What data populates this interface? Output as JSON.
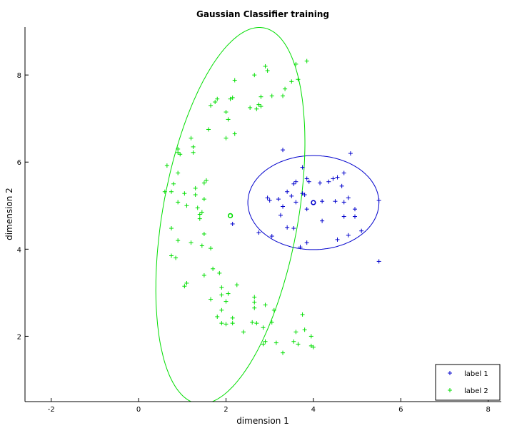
{
  "chart_data": {
    "type": "scatter",
    "title": "Gaussian Classifier training",
    "xlabel": "dimension 1",
    "ylabel": "dimension 2",
    "xlim": [
      -2.6,
      8.3
    ],
    "ylim": [
      0.5,
      9.1
    ],
    "xticks": [
      -2,
      0,
      2,
      4,
      6,
      8
    ],
    "yticks": [
      2,
      4,
      6,
      8
    ],
    "grid": false,
    "legend_position": "bottom-right",
    "series": [
      {
        "name": "label 1",
        "color": "#0000cc",
        "marker": "plus",
        "points": [
          [
            3.3,
            6.28
          ],
          [
            4.85,
            6.2
          ],
          [
            3.75,
            5.88
          ],
          [
            3.6,
            5.55
          ],
          [
            3.55,
            5.5
          ],
          [
            3.4,
            5.32
          ],
          [
            3.5,
            5.22
          ],
          [
            3.85,
            5.62
          ],
          [
            3.9,
            5.55
          ],
          [
            3.75,
            5.28
          ],
          [
            3.8,
            5.25
          ],
          [
            4.15,
            5.52
          ],
          [
            4.45,
            5.62
          ],
          [
            4.55,
            5.65
          ],
          [
            4.7,
            5.75
          ],
          [
            4.35,
            5.55
          ],
          [
            4.65,
            5.45
          ],
          [
            4.5,
            5.1
          ],
          [
            4.7,
            5.08
          ],
          [
            4.8,
            5.18
          ],
          [
            5.5,
            5.12
          ],
          [
            3.2,
            5.15
          ],
          [
            3.0,
            5.12
          ],
          [
            2.95,
            5.18
          ],
          [
            3.3,
            4.98
          ],
          [
            3.85,
            4.92
          ],
          [
            3.25,
            4.78
          ],
          [
            4.95,
            4.92
          ],
          [
            4.7,
            4.75
          ],
          [
            4.95,
            4.75
          ],
          [
            4.2,
            4.65
          ],
          [
            3.4,
            4.5
          ],
          [
            3.55,
            4.48
          ],
          [
            5.1,
            4.42
          ],
          [
            2.15,
            4.58
          ],
          [
            2.75,
            4.38
          ],
          [
            3.05,
            4.3
          ],
          [
            4.8,
            4.32
          ],
          [
            3.85,
            4.15
          ],
          [
            4.55,
            4.22
          ],
          [
            3.7,
            4.05
          ],
          [
            5.5,
            3.72
          ],
          [
            4.2,
            5.1
          ],
          [
            3.6,
            5.08
          ]
        ]
      },
      {
        "name": "label 2",
        "color": "#00dd00",
        "marker": "plus",
        "points": [
          [
            3.85,
            8.32
          ],
          [
            3.6,
            8.25
          ],
          [
            2.9,
            8.2
          ],
          [
            2.95,
            8.1
          ],
          [
            2.65,
            8.0
          ],
          [
            3.65,
            7.9
          ],
          [
            3.5,
            7.85
          ],
          [
            2.2,
            7.88
          ],
          [
            3.35,
            7.68
          ],
          [
            2.15,
            7.48
          ],
          [
            2.1,
            7.45
          ],
          [
            3.05,
            7.52
          ],
          [
            3.3,
            7.52
          ],
          [
            2.8,
            7.5
          ],
          [
            1.8,
            7.45
          ],
          [
            1.75,
            7.38
          ],
          [
            1.65,
            7.3
          ],
          [
            2.75,
            7.32
          ],
          [
            2.8,
            7.28
          ],
          [
            2.55,
            7.25
          ],
          [
            2.7,
            7.22
          ],
          [
            2.0,
            7.15
          ],
          [
            2.05,
            6.98
          ],
          [
            1.6,
            6.75
          ],
          [
            2.2,
            6.65
          ],
          [
            2.0,
            6.55
          ],
          [
            1.2,
            6.55
          ],
          [
            1.25,
            6.35
          ],
          [
            0.9,
            6.3
          ],
          [
            1.25,
            6.22
          ],
          [
            0.9,
            6.22
          ],
          [
            0.95,
            6.18
          ],
          [
            0.65,
            5.92
          ],
          [
            0.9,
            5.75
          ],
          [
            1.55,
            5.58
          ],
          [
            1.5,
            5.52
          ],
          [
            0.8,
            5.5
          ],
          [
            1.3,
            5.4
          ],
          [
            0.6,
            5.32
          ],
          [
            0.75,
            5.32
          ],
          [
            1.05,
            5.28
          ],
          [
            1.3,
            5.25
          ],
          [
            1.5,
            5.15
          ],
          [
            0.9,
            5.08
          ],
          [
            1.1,
            5.0
          ],
          [
            1.35,
            4.95
          ],
          [
            1.45,
            4.85
          ],
          [
            1.4,
            4.8
          ],
          [
            1.4,
            4.7
          ],
          [
            0.75,
            4.48
          ],
          [
            1.5,
            4.35
          ],
          [
            0.9,
            4.2
          ],
          [
            1.2,
            4.15
          ],
          [
            1.45,
            4.08
          ],
          [
            1.65,
            4.02
          ],
          [
            0.75,
            3.85
          ],
          [
            0.85,
            3.8
          ],
          [
            1.7,
            3.55
          ],
          [
            1.85,
            3.45
          ],
          [
            1.5,
            3.4
          ],
          [
            1.1,
            3.22
          ],
          [
            1.05,
            3.15
          ],
          [
            2.25,
            3.18
          ],
          [
            1.9,
            3.12
          ],
          [
            2.05,
            2.98
          ],
          [
            1.9,
            2.95
          ],
          [
            1.65,
            2.85
          ],
          [
            2.0,
            2.8
          ],
          [
            2.65,
            2.9
          ],
          [
            2.65,
            2.78
          ],
          [
            2.9,
            2.72
          ],
          [
            2.65,
            2.65
          ],
          [
            3.1,
            2.6
          ],
          [
            1.9,
            2.6
          ],
          [
            3.75,
            2.5
          ],
          [
            1.8,
            2.45
          ],
          [
            2.15,
            2.42
          ],
          [
            2.15,
            2.3
          ],
          [
            1.9,
            2.3
          ],
          [
            2.0,
            2.28
          ],
          [
            2.6,
            2.32
          ],
          [
            2.7,
            2.3
          ],
          [
            3.05,
            2.32
          ],
          [
            2.85,
            2.2
          ],
          [
            3.8,
            2.15
          ],
          [
            2.4,
            2.1
          ],
          [
            3.6,
            2.1
          ],
          [
            3.95,
            2.0
          ],
          [
            2.9,
            1.88
          ],
          [
            2.85,
            1.82
          ],
          [
            3.55,
            1.88
          ],
          [
            3.65,
            1.82
          ],
          [
            3.15,
            1.85
          ],
          [
            3.95,
            1.78
          ],
          [
            4.0,
            1.75
          ],
          [
            3.3,
            1.62
          ]
        ]
      }
    ],
    "means": [
      {
        "series": "label 1",
        "x": 4.0,
        "y": 5.07
      },
      {
        "series": "label 2",
        "x": 2.1,
        "y": 4.77
      }
    ],
    "ellipses": [
      {
        "series": "label 1",
        "cx": 4.0,
        "cy": 5.07,
        "rx": 1.5,
        "ry": 1.08,
        "angle_deg": 0
      },
      {
        "series": "label 2",
        "cx": 2.1,
        "cy": 4.77,
        "rx": 1.55,
        "ry": 4.38,
        "angle_deg": -10
      }
    ]
  }
}
